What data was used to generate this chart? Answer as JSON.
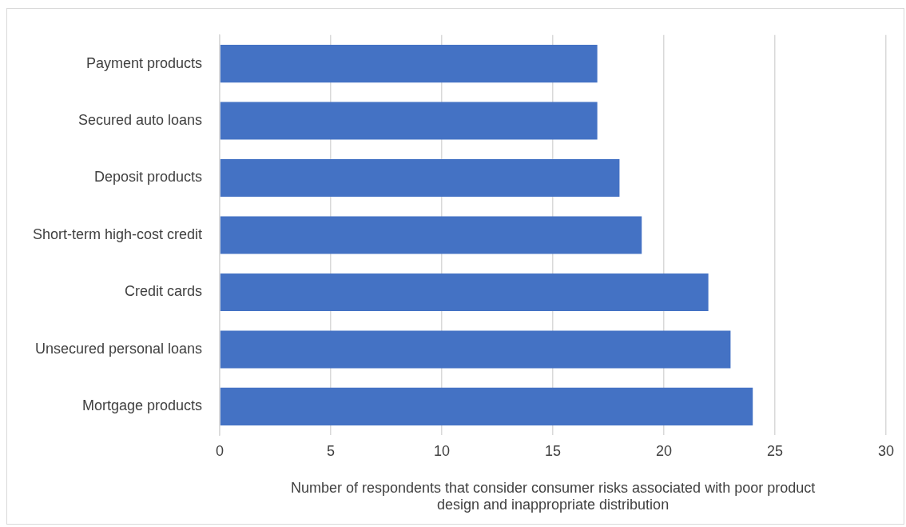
{
  "chart_data": {
    "type": "bar",
    "orientation": "horizontal",
    "categories": [
      "Payment products",
      "Secured auto loans",
      "Deposit products",
      "Short-term high-cost credit",
      "Credit cards",
      "Unsecured personal loans",
      "Mortgage products"
    ],
    "values": [
      17,
      17,
      18,
      19,
      22,
      23,
      24
    ],
    "color": "#4472c4",
    "xlabel": "Number of respondents that consider consumer risks associated with poor product design and inappropriate distribution",
    "xlim": [
      0,
      30
    ],
    "xticks": [
      0,
      5,
      10,
      15,
      20,
      25,
      30
    ],
    "grid": "x"
  }
}
